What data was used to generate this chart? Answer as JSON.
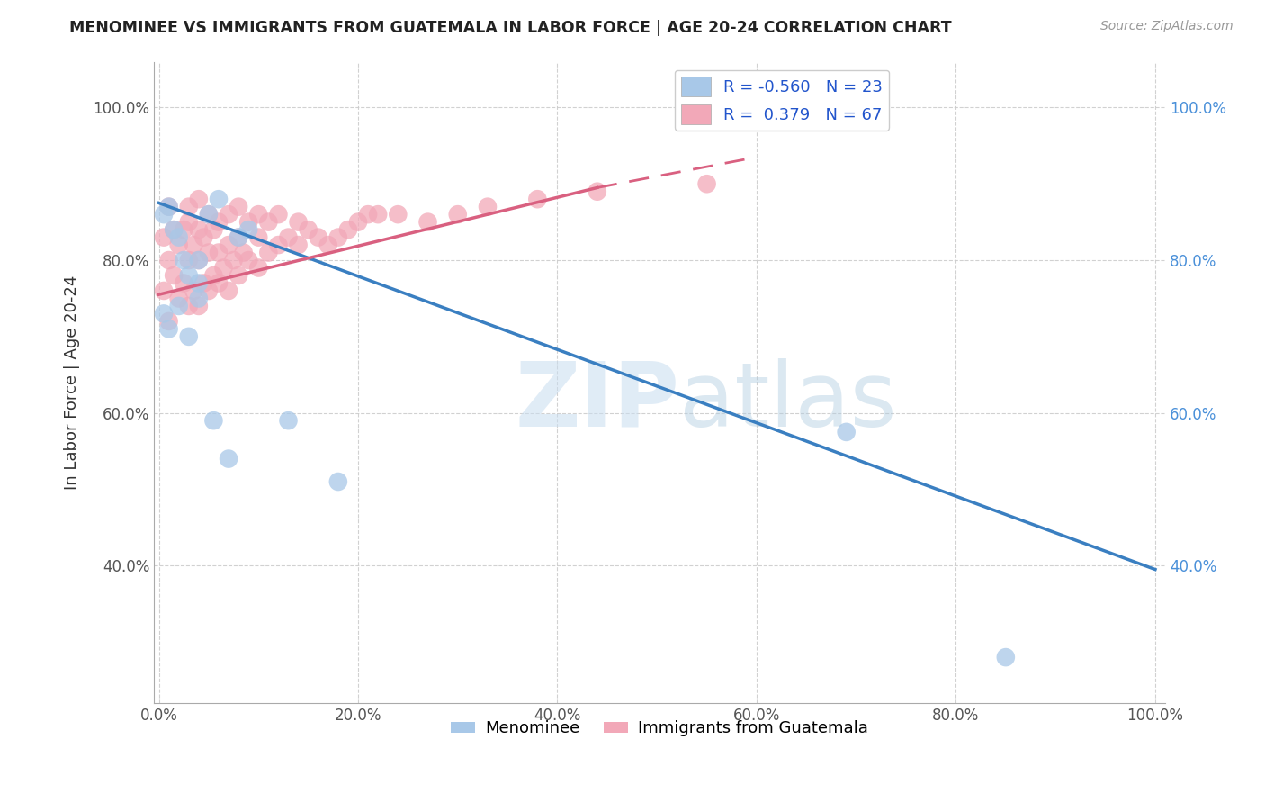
{
  "title": "MENOMINEE VS IMMIGRANTS FROM GUATEMALA IN LABOR FORCE | AGE 20-24 CORRELATION CHART",
  "source": "Source: ZipAtlas.com",
  "ylabel": "In Labor Force | Age 20-24",
  "legend_r1": "R = -0.560",
  "legend_n1": "N = 23",
  "legend_r2": "R =  0.379",
  "legend_n2": "N = 67",
  "color_blue": "#a8c8e8",
  "color_pink": "#f2a8b8",
  "line_color_blue": "#3a7fc1",
  "line_color_pink": "#d96080",
  "watermark_zip": "ZIP",
  "watermark_atlas": "atlas",
  "menominee_x": [
    0.005,
    0.01,
    0.015,
    0.02,
    0.025,
    0.03,
    0.04,
    0.04,
    0.05,
    0.06,
    0.005,
    0.01,
    0.02,
    0.03,
    0.04,
    0.055,
    0.07,
    0.08,
    0.09,
    0.13,
    0.18,
    0.69,
    0.85
  ],
  "menominee_y": [
    0.86,
    0.87,
    0.84,
    0.83,
    0.8,
    0.78,
    0.75,
    0.8,
    0.86,
    0.88,
    0.73,
    0.71,
    0.74,
    0.7,
    0.77,
    0.59,
    0.54,
    0.83,
    0.84,
    0.59,
    0.51,
    0.575,
    0.28
  ],
  "guatemala_x": [
    0.005,
    0.005,
    0.01,
    0.01,
    0.01,
    0.015,
    0.015,
    0.02,
    0.02,
    0.025,
    0.025,
    0.03,
    0.03,
    0.03,
    0.03,
    0.035,
    0.035,
    0.04,
    0.04,
    0.04,
    0.04,
    0.045,
    0.045,
    0.05,
    0.05,
    0.05,
    0.055,
    0.055,
    0.06,
    0.06,
    0.06,
    0.065,
    0.07,
    0.07,
    0.07,
    0.075,
    0.08,
    0.08,
    0.08,
    0.085,
    0.09,
    0.09,
    0.1,
    0.1,
    0.1,
    0.11,
    0.11,
    0.12,
    0.12,
    0.13,
    0.14,
    0.14,
    0.15,
    0.16,
    0.17,
    0.18,
    0.19,
    0.2,
    0.21,
    0.22,
    0.24,
    0.27,
    0.3,
    0.33,
    0.38,
    0.44,
    0.55
  ],
  "guatemala_y": [
    0.76,
    0.83,
    0.72,
    0.8,
    0.87,
    0.78,
    0.84,
    0.75,
    0.82,
    0.77,
    0.84,
    0.74,
    0.8,
    0.85,
    0.87,
    0.76,
    0.82,
    0.74,
    0.8,
    0.84,
    0.88,
    0.77,
    0.83,
    0.76,
    0.81,
    0.86,
    0.78,
    0.84,
    0.77,
    0.81,
    0.85,
    0.79,
    0.76,
    0.82,
    0.86,
    0.8,
    0.78,
    0.83,
    0.87,
    0.81,
    0.8,
    0.85,
    0.79,
    0.83,
    0.86,
    0.81,
    0.85,
    0.82,
    0.86,
    0.83,
    0.82,
    0.85,
    0.84,
    0.83,
    0.82,
    0.83,
    0.84,
    0.85,
    0.86,
    0.86,
    0.86,
    0.85,
    0.86,
    0.87,
    0.88,
    0.89,
    0.9
  ],
  "xlim": [
    -0.005,
    1.01
  ],
  "ylim": [
    0.22,
    1.06
  ],
  "x_tick_vals": [
    0.0,
    0.2,
    0.4,
    0.6,
    0.8,
    1.0
  ],
  "y_tick_vals": [
    0.4,
    0.6,
    0.8,
    1.0
  ],
  "blue_line_x0": 0.0,
  "blue_line_x1": 1.0,
  "pink_line_x0": 0.0,
  "pink_line_solid_x1": 0.44,
  "pink_line_dash_x1": 0.6
}
